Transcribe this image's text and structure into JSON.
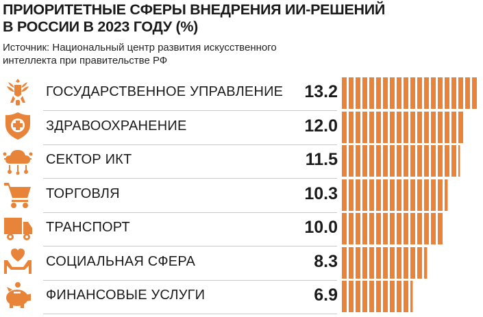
{
  "title_lines": [
    "ПРИОРИТЕТНЫЕ СФЕРЫ ВНЕДРЕНИЯ ИИ-РЕШЕНИЙ",
    "В РОССИИ В 2023 ГОДУ (%)"
  ],
  "source_lines": [
    "Источник: Национальный центр развития искусственного",
    "интеллекта при правительстве РФ"
  ],
  "colors": {
    "accent": "#e8843a",
    "text": "#1a1a1a",
    "divider": "#c8c8c8"
  },
  "chart_data": {
    "type": "bar",
    "orientation": "horizontal",
    "title": "ПРИОРИТЕТНЫЕ СФЕРЫ ВНЕДРЕНИЯ ИИ-РЕШЕНИЙ В РОССИИ В 2023 ГОДУ (%)",
    "unit": "%",
    "xlim": [
      0,
      13.2
    ],
    "grid": false,
    "categories": [
      "ГОСУДАРСТВЕННОЕ УПРАВЛЕНИЕ",
      "ЗДРАВООХРАНЕНИЕ",
      "СЕКТОР ИКТ",
      "ТОРГОВЛЯ",
      "ТРАНСПОРТ",
      "СОЦИАЛЬНАЯ СФЕРА",
      "ФИНАНСОВЫЕ УСЛУГИ"
    ],
    "values": [
      13.2,
      12.0,
      11.5,
      10.3,
      10.0,
      8.3,
      6.9
    ],
    "value_labels": [
      "13.2",
      "12.0",
      "11.5",
      "10.3",
      "10.0",
      "8.3",
      "6.9"
    ],
    "icons": [
      "coat-of-arms-icon",
      "medical-shield-icon",
      "cloud-network-icon",
      "shopping-cart-icon",
      "truck-icon",
      "heart-hands-icon",
      "piggy-bank-icon"
    ]
  }
}
